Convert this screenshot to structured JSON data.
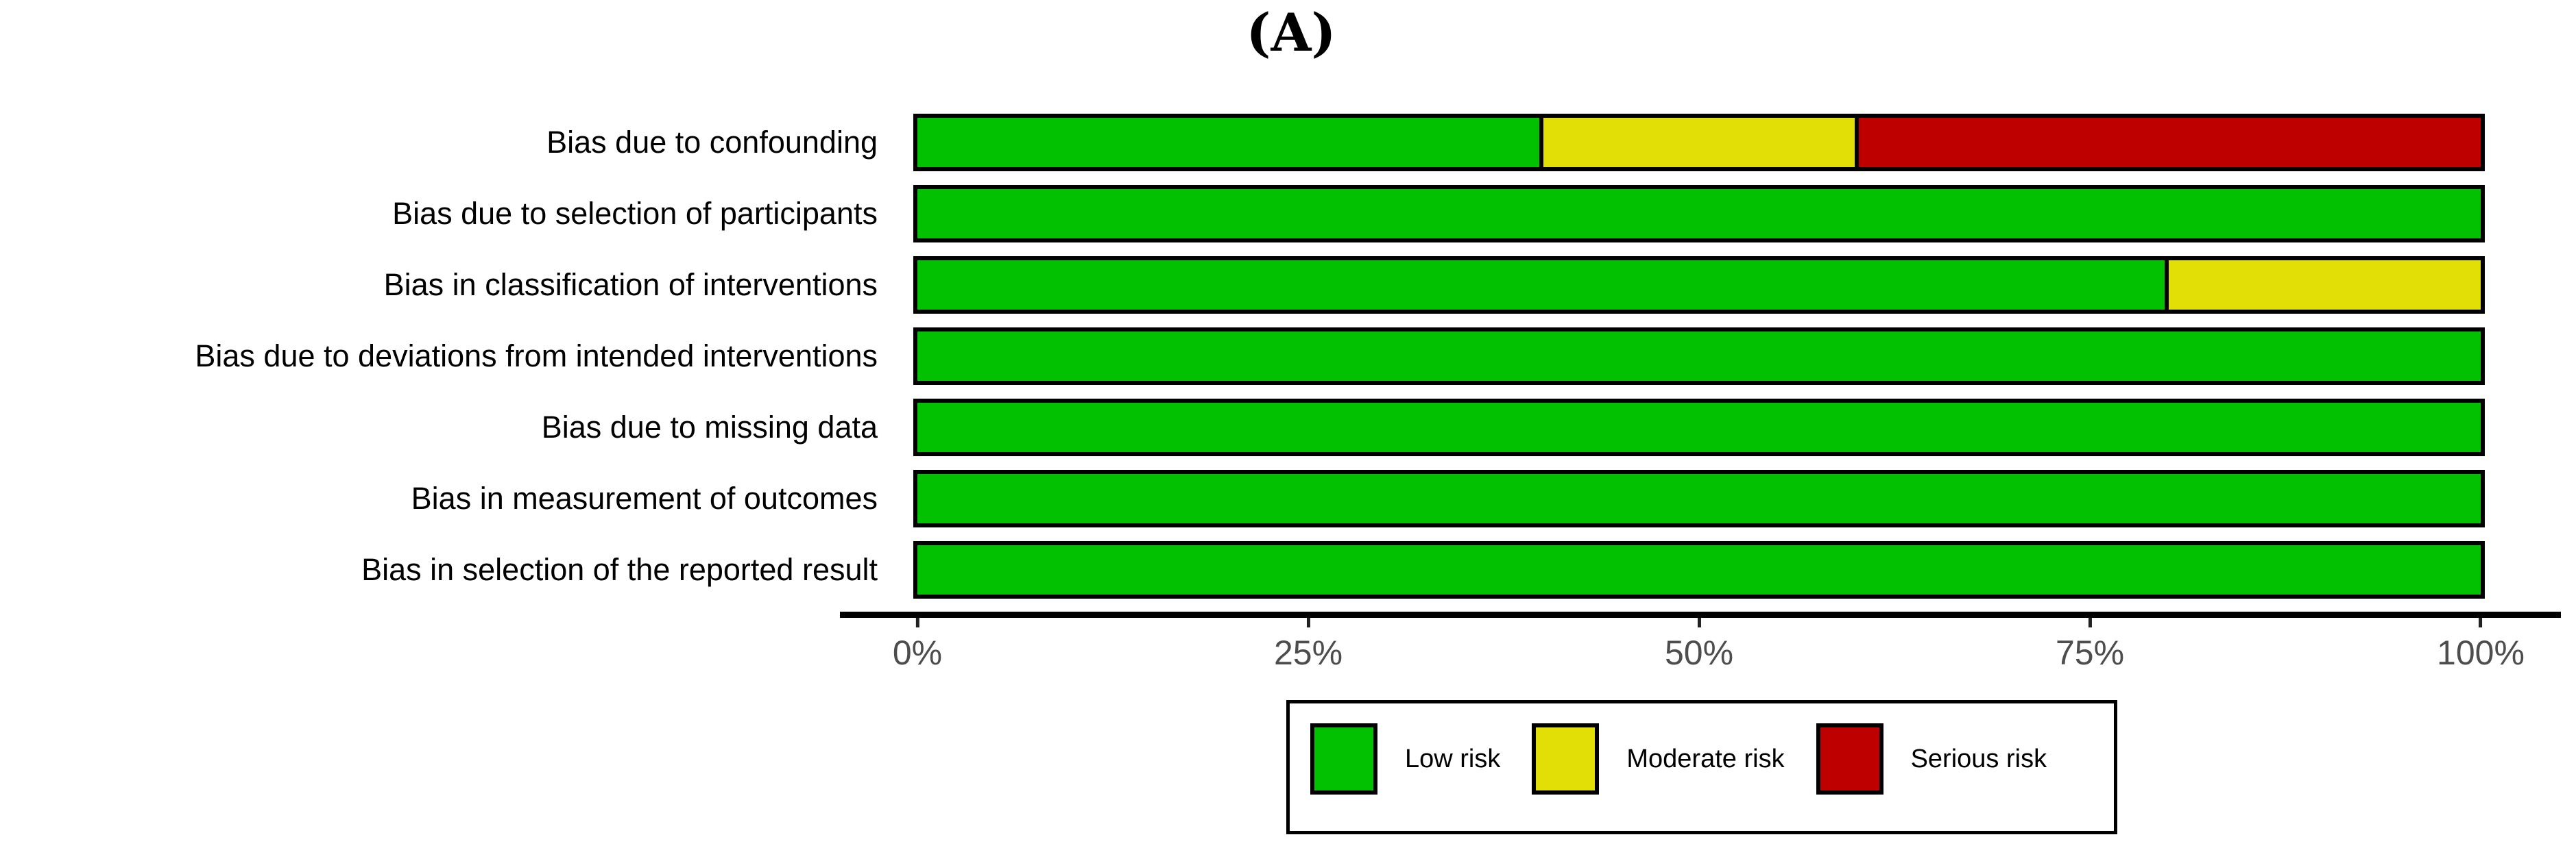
{
  "title": "(A)",
  "chart_data": {
    "type": "bar",
    "orientation": "horizontal",
    "stacked": true,
    "grid": false,
    "unit": "percent",
    "title": "(A)",
    "xlabel": "",
    "ylabel": "",
    "xlim": [
      0,
      100
    ],
    "x_ticks": [
      {
        "label": "0%",
        "value": 0
      },
      {
        "label": "25%",
        "value": 25
      },
      {
        "label": "50%",
        "value": 50
      },
      {
        "label": "75%",
        "value": 75
      },
      {
        "label": "100%",
        "value": 100
      }
    ],
    "categories": [
      "Bias due to confounding",
      "Bias due to selection of participants",
      "Bias in classification of interventions",
      "Bias due to deviations from intended interventions",
      "Bias due to missing data",
      "Bias in measurement of outcomes",
      "Bias in selection of the reported result"
    ],
    "series": [
      {
        "name": "Low risk",
        "color": "#02C100",
        "values": [
          40,
          100,
          80,
          100,
          100,
          100,
          100
        ]
      },
      {
        "name": "Moderate risk",
        "color": "#E2DF07",
        "values": [
          20,
          0,
          20,
          0,
          0,
          0,
          0
        ]
      },
      {
        "name": "Serious risk",
        "color": "#BF0000",
        "values": [
          40,
          0,
          0,
          0,
          0,
          0,
          0
        ]
      }
    ],
    "legend_position": "bottom"
  },
  "colors": {
    "bar_border": "#000000",
    "axis_line": "#000000",
    "axis_text": "#4D4D4D",
    "background": "#FFFFFF"
  }
}
